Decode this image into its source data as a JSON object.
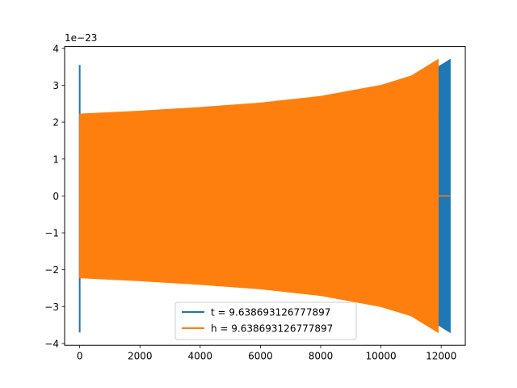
{
  "chart_data": {
    "type": "line",
    "title": "",
    "xlabel": "",
    "ylabel": "",
    "y_offset_label": "1e−23",
    "xlim": [
      -500,
      12800
    ],
    "ylim": [
      -4.05,
      4.05
    ],
    "x_ticks": [
      0,
      2000,
      4000,
      6000,
      8000,
      10000,
      12000
    ],
    "y_ticks": [
      -4,
      -3,
      -2,
      -1,
      0,
      1,
      2,
      3,
      4
    ],
    "grid": false,
    "legend_position": "lower center",
    "series": [
      {
        "name": "t = 9.638693126777897",
        "color": "#1f77b4",
        "x_range": [
          0,
          12300
        ],
        "envelope_x": [
          0,
          2000,
          4000,
          6000,
          8000,
          10000,
          11000,
          11900,
          12300
        ],
        "envelope_amplitude": [
          2.2,
          2.28,
          2.38,
          2.5,
          2.68,
          2.98,
          3.2,
          3.5,
          3.7
        ],
        "initial_spike": {
          "x": 0,
          "max": 3.55,
          "min": -3.7
        },
        "tail_value": 0
      },
      {
        "name": "h = 9.638693126777897",
        "color": "#ff7f0e",
        "x_range": [
          0,
          11900
        ],
        "envelope_x": [
          0,
          2000,
          4000,
          6000,
          8000,
          10000,
          11000,
          11900
        ],
        "envelope_amplitude": [
          2.22,
          2.3,
          2.4,
          2.52,
          2.7,
          3.0,
          3.25,
          3.7
        ],
        "tail_value": 0,
        "tail_x_range": [
          11900,
          12300
        ]
      }
    ]
  }
}
